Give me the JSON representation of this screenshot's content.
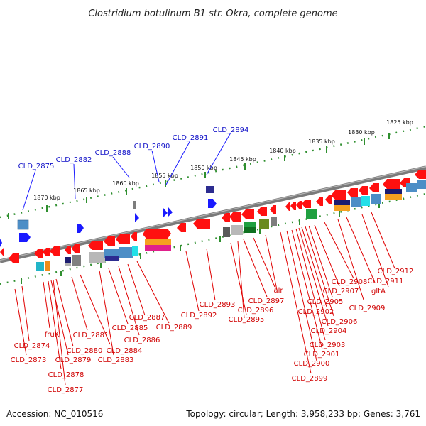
{
  "title": "Clostridium botulinum B1 str. Okra, complete genome",
  "accession": "Accession: NC_010516",
  "topology": "Topology: circular; Length: 3,958,233 bp; Genes: 3,761",
  "scale_ticks": [
    "1825 kbp",
    "1830 kbp",
    "1835 kbp",
    "1840 kbp",
    "1845 kbp",
    "1850 kbp",
    "1855 kbp",
    "1860 kbp",
    "1865 kbp",
    "1870 kbp"
  ],
  "top_labels": [
    "CLD_2875",
    "CLD_2882",
    "CLD_2888",
    "CLD_2890",
    "CLD_2891",
    "CLD_2894"
  ],
  "bottom_labels": [
    "CLD_2874",
    "CLD_2873",
    "fruK",
    "CLD_2880",
    "CLD_2879",
    "CLD_2878",
    "CLD_2877",
    "CLD_2881",
    "CLD_2884",
    "CLD_2883",
    "CLD_2885",
    "CLD_2886",
    "CLD_2887",
    "CLD_2889",
    "CLD_2892",
    "CLD_2893",
    "CLD_2896",
    "CLD_2895",
    "CLD_2897",
    "alr",
    "CLD_2902",
    "CLD_2905",
    "CLD_2906",
    "CLD_2904",
    "CLD_2903",
    "CLD_2901",
    "CLD_2900",
    "CLD_2899",
    "CLD_2907",
    "CLD_2908",
    "gltA",
    "CLD_2909",
    "CLD_2911",
    "CLD_2912"
  ],
  "colors": {
    "backbone": "#7a7a7a",
    "scale_dot": "#2f8f2f",
    "forward_gene": "#1a1aff",
    "reverse_gene": "#ff1010",
    "label_blue": "#1010c8",
    "label_red": "#d00000"
  }
}
